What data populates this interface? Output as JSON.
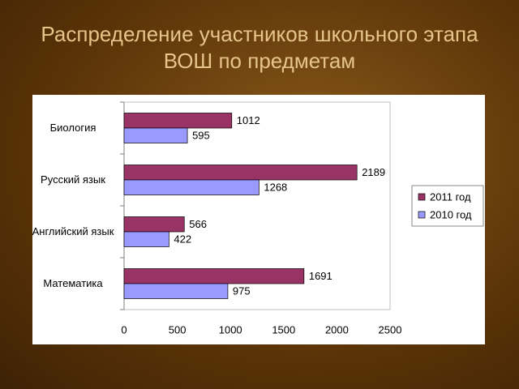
{
  "chart_data": {
    "type": "bar",
    "orientation": "horizontal",
    "title": "Распределение участников школьного этапа ВОШ по предметам",
    "categories": [
      "Биология",
      "Русский язык",
      "Английский язык",
      "Математика"
    ],
    "series": [
      {
        "name": "2011 год",
        "color": "#993366",
        "values": [
          1012,
          2189,
          566,
          1691
        ]
      },
      {
        "name": "2010 год",
        "color": "#9999ff",
        "values": [
          595,
          1268,
          422,
          975
        ]
      }
    ],
    "xlim": [
      0,
      2500
    ],
    "xticks": [
      0,
      500,
      1000,
      1500,
      2000,
      2500
    ],
    "grid": false,
    "legend": "right"
  }
}
